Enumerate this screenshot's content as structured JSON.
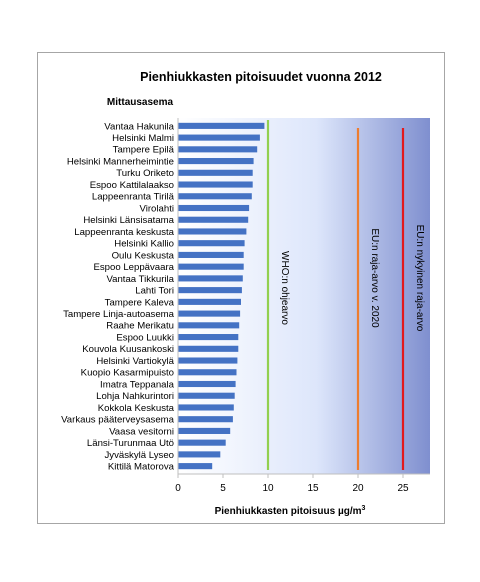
{
  "chart_data": {
    "type": "bar",
    "orientation": "horizontal",
    "title": "Pienhiukkasten  pitoisuudet vuonna 2012",
    "ylabel": "Mittausasema",
    "xlabel": "Pienhiukkasten pitoisuus  µg/m",
    "xlabel_superscript": "3",
    "xlim": [
      0,
      28
    ],
    "xticks": [
      0,
      5,
      10,
      15,
      20,
      25
    ],
    "grid": false,
    "categories": [
      "Vantaa Hakunila",
      "Helsinki Malmi",
      "Tampere Epilä",
      "Helsinki Mannerheimintie",
      "Turku Oriketo",
      "Espoo Kattilalaakso",
      "Lappeenranta Tirilä",
      "Virolahti",
      "Helsinki Länsisatama",
      "Lappeenranta keskusta",
      "Helsinki Kallio",
      "Oulu Keskusta",
      "Espoo Leppävaara",
      "Vantaa Tikkurila",
      "Lahti Tori",
      "Tampere Kaleva",
      "Tampere Linja-autoasema",
      "Raahe Merikatu",
      "Espoo Luukki",
      "Kouvola Kuusankoski",
      "Helsinki Vartiokylä",
      "Kuopio Kasarmipuisto",
      "Imatra Teppanala",
      "Lohja Nahkurintori",
      "Kokkola Keskusta",
      "Varkaus pääterveysasema",
      "Vaasa vesitorni",
      "Länsi-Turunmaa Utö",
      "Jyväskylä Lyseo",
      "Kittilä Matorova"
    ],
    "values": [
      9.6,
      9.1,
      8.8,
      8.4,
      8.3,
      8.3,
      8.2,
      7.9,
      7.8,
      7.6,
      7.4,
      7.3,
      7.3,
      7.2,
      7.1,
      7.0,
      6.9,
      6.8,
      6.7,
      6.7,
      6.6,
      6.5,
      6.4,
      6.3,
      6.2,
      6.1,
      5.8,
      5.3,
      4.7,
      3.8
    ],
    "bar_color": "#4472c4",
    "reference_lines": [
      {
        "label": "WHO:n ohjearvo",
        "value": 10,
        "color": "#92d050"
      },
      {
        "label": "EU:n raja-arvo  v. 2020",
        "value": 20,
        "color": "#ed7d31"
      },
      {
        "label": "EU:n nykyinen raja-arvo",
        "value": 25,
        "color": "#e31a1c"
      }
    ],
    "background_gradient": [
      "#ffffff",
      "#dde6fb",
      "#7f8fcf"
    ]
  }
}
